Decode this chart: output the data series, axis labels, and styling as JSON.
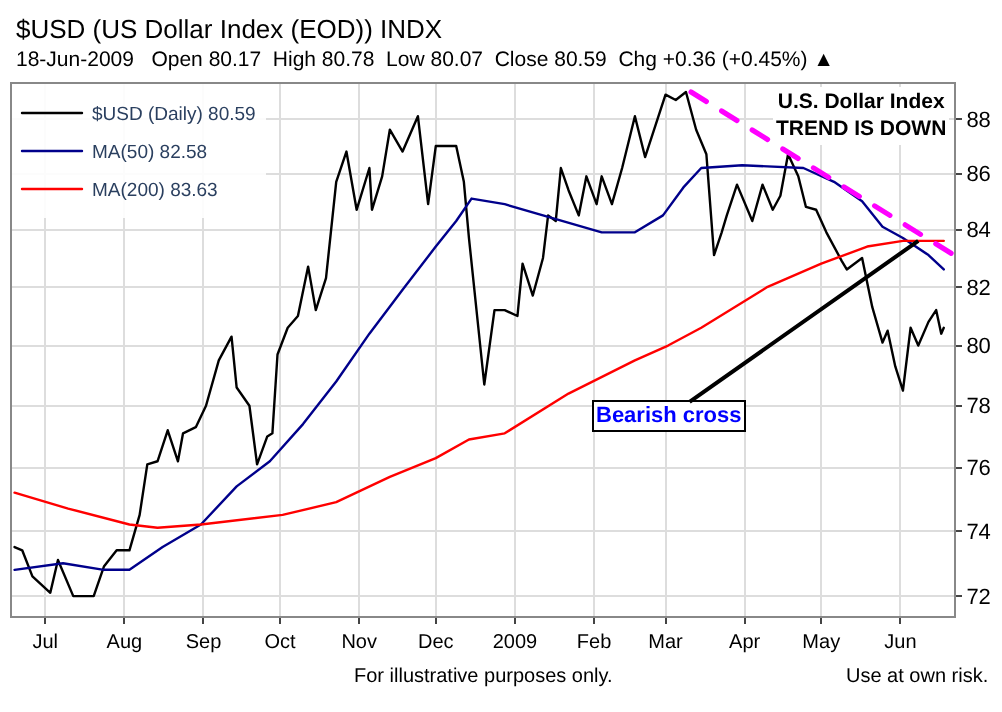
{
  "chart_data": {
    "type": "line",
    "title": "$USD (US Dollar Index (EOD)) INDX",
    "subtitle": "18-Jun-2009   Open 80.17  High 80.78  Low 80.07  Close 80.59  Chg +0.36 (+0.45%) ▲",
    "log": true,
    "grid": true,
    "legend": "top left",
    "line_style": "solid",
    "marker": "none",
    "xlim": [
      "2008-06-18",
      "2009-06-22"
    ],
    "ylim": [
      71.4,
      89.3
    ],
    "yticks": [
      72,
      74,
      76,
      78,
      80,
      82,
      84,
      86,
      88
    ],
    "xticks": [
      {
        "value": "2008-07-01",
        "label": "Jul"
      },
      {
        "value": "2008-08-01",
        "label": "Aug"
      },
      {
        "value": "2008-09-01",
        "label": "Sep"
      },
      {
        "value": "2008-10-01",
        "label": "Oct"
      },
      {
        "value": "2008-11-01",
        "label": "Nov"
      },
      {
        "value": "2008-12-01",
        "label": "Dec"
      },
      {
        "value": "2009-01-01",
        "label": "2009"
      },
      {
        "value": "2009-02-01",
        "label": "Feb"
      },
      {
        "value": "2009-03-01",
        "label": "Mar"
      },
      {
        "value": "2009-04-01",
        "label": "Apr"
      },
      {
        "value": "2009-05-01",
        "label": "May"
      },
      {
        "value": "2009-06-01",
        "label": "Jun"
      }
    ],
    "series": [
      {
        "name": "$USD (Daily) 80.59",
        "color": "#000000",
        "x": [
          "2008-06-19",
          "2008-06-22",
          "2008-06-26",
          "2008-07-03",
          "2008-07-06",
          "2008-07-12",
          "2008-07-20",
          "2008-07-24",
          "2008-07-29",
          "2008-08-03",
          "2008-08-07",
          "2008-08-10",
          "2008-08-14",
          "2008-08-18",
          "2008-08-22",
          "2008-08-24",
          "2008-08-29",
          "2008-09-02",
          "2008-09-07",
          "2008-09-12",
          "2008-09-14",
          "2008-09-19",
          "2008-09-22",
          "2008-09-26",
          "2008-09-28",
          "2008-09-30",
          "2008-10-04",
          "2008-10-08",
          "2008-10-12",
          "2008-10-15",
          "2008-10-19",
          "2008-10-23",
          "2008-10-27",
          "2008-10-31",
          "2008-11-05",
          "2008-11-06",
          "2008-11-10",
          "2008-11-13",
          "2008-11-18",
          "2008-11-24",
          "2008-11-28",
          "2008-12-01",
          "2008-12-09",
          "2008-12-12",
          "2008-12-14",
          "2008-12-20",
          "2008-12-24",
          "2008-12-28",
          "2009-01-02",
          "2009-01-04",
          "2009-01-08",
          "2009-01-12",
          "2009-01-14",
          "2009-01-17",
          "2009-01-19",
          "2009-01-22",
          "2009-01-26",
          "2009-01-29",
          "2009-02-02",
          "2009-02-04",
          "2009-02-08",
          "2009-02-12",
          "2009-02-17",
          "2009-02-21",
          "2009-03-01",
          "2009-03-05",
          "2009-03-09",
          "2009-03-13",
          "2009-03-17",
          "2009-03-20",
          "2009-03-23",
          "2009-03-25",
          "2009-03-29",
          "2009-04-04",
          "2009-04-08",
          "2009-04-12",
          "2009-04-15",
          "2009-04-18",
          "2009-04-22",
          "2009-04-25",
          "2009-04-29",
          "2009-05-03",
          "2009-05-09",
          "2009-05-11",
          "2009-05-17",
          "2009-05-21",
          "2009-05-25",
          "2009-05-27",
          "2009-05-30",
          "2009-06-02",
          "2009-06-05",
          "2009-06-08",
          "2009-06-12",
          "2009-06-15",
          "2009-06-17",
          "2009-06-18"
        ],
        "values": [
          73.5,
          73.4,
          72.6,
          72.1,
          73.1,
          72.0,
          72.0,
          72.9,
          73.4,
          73.4,
          74.5,
          76.1,
          76.2,
          77.2,
          76.2,
          77.1,
          77.3,
          78.0,
          79.5,
          80.3,
          78.6,
          78.0,
          76.1,
          77.0,
          77.1,
          79.7,
          80.6,
          81.0,
          82.7,
          81.2,
          82.3,
          85.7,
          86.8,
          84.7,
          86.2,
          84.7,
          85.9,
          87.6,
          86.8,
          88.1,
          84.9,
          87.0,
          87.0,
          85.7,
          83.7,
          78.7,
          81.2,
          81.2,
          81.0,
          82.8,
          81.7,
          83.0,
          84.5,
          84.3,
          86.2,
          85.4,
          84.5,
          85.9,
          84.9,
          85.9,
          84.9,
          86.2,
          88.1,
          86.6,
          88.9,
          88.7,
          89.0,
          87.6,
          86.7,
          83.1,
          83.9,
          84.5,
          85.6,
          84.3,
          85.6,
          84.7,
          85.2,
          86.7,
          85.9,
          84.8,
          84.7,
          83.9,
          82.9,
          82.6,
          83.0,
          81.3,
          80.1,
          80.5,
          79.3,
          78.5,
          80.6,
          80.0,
          80.8,
          81.2,
          80.4,
          80.6
        ]
      },
      {
        "name": "MA(50) 82.58",
        "color": "#00008b",
        "x": [
          "2008-06-19",
          "2008-07-08",
          "2008-07-24",
          "2008-08-03",
          "2008-08-16",
          "2008-08-31",
          "2008-09-14",
          "2008-09-27",
          "2008-10-10",
          "2008-10-23",
          "2008-11-05",
          "2008-11-18",
          "2008-12-01",
          "2008-12-09",
          "2008-12-15",
          "2008-12-28",
          "2009-01-12",
          "2009-02-04",
          "2009-02-17",
          "2009-02-28",
          "2009-03-08",
          "2009-03-15",
          "2009-03-31",
          "2009-04-24",
          "2009-05-06",
          "2009-05-17",
          "2009-05-25",
          "2009-06-02",
          "2009-06-12",
          "2009-06-18"
        ],
        "values": [
          72.8,
          73.0,
          72.8,
          72.8,
          73.5,
          74.2,
          75.4,
          76.2,
          77.4,
          78.8,
          80.4,
          81.9,
          83.4,
          84.3,
          85.1,
          84.9,
          84.5,
          83.9,
          83.9,
          84.5,
          85.5,
          86.2,
          86.3,
          86.2,
          85.7,
          85.0,
          84.1,
          83.7,
          83.1,
          82.6
        ]
      },
      {
        "name": "MA(200) 83.63",
        "color": "#ff0000",
        "x": [
          "2008-06-19",
          "2008-07-10",
          "2008-08-03",
          "2008-08-14",
          "2008-08-31",
          "2008-10-02",
          "2008-10-23",
          "2008-11-13",
          "2008-12-01",
          "2008-12-14",
          "2008-12-28",
          "2009-01-22",
          "2009-02-17",
          "2009-03-02",
          "2009-03-15",
          "2009-04-10",
          "2009-05-01",
          "2009-05-19",
          "2009-06-02",
          "2009-06-18"
        ],
        "values": [
          75.2,
          74.7,
          74.2,
          74.1,
          74.2,
          74.5,
          74.9,
          75.7,
          76.3,
          76.9,
          77.1,
          78.4,
          79.5,
          80.0,
          80.6,
          82.0,
          82.8,
          83.4,
          83.6,
          83.6
        ]
      },
      {
        "type": "line",
        "color": "#ff00ff",
        "line_style": "dashed",
        "x": [
          "2009-03-11",
          "2009-06-22"
        ],
        "values": [
          89.0,
          83.1
        ]
      }
    ],
    "annotations": [
      {
        "text": "U.S. Dollar Index\nTREND IS DOWN"
      },
      {
        "text": "Bearish cross",
        "x": "2009-06-08",
        "y": 83.6
      },
      {
        "text": "For illustrative purposes only."
      },
      {
        "text": "Use at own risk."
      }
    ]
  }
}
